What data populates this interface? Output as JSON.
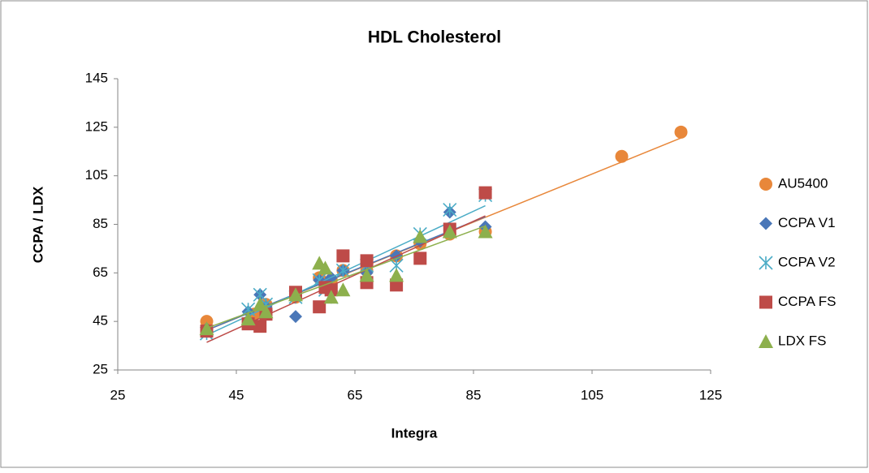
{
  "chart_data": {
    "type": "scatter",
    "title": "HDL Cholesterol",
    "x_label": "Integra",
    "y_label": "CCPA / LDX",
    "xlim": [
      25,
      125
    ],
    "xticks": [
      25,
      45,
      65,
      85,
      105,
      125
    ],
    "ylim": [
      25,
      145
    ],
    "yticks": [
      25,
      45,
      65,
      85,
      105,
      125,
      145
    ],
    "grid": false,
    "trendline": true,
    "legend": "right",
    "series": [
      {
        "name": "AU5400",
        "color": "#e8873a",
        "marker": "circle",
        "x": [
          40,
          48,
          50,
          55,
          59,
          60,
          61,
          63,
          67,
          72,
          76,
          81,
          87,
          110,
          120
        ],
        "values": [
          45,
          48,
          52,
          55,
          63,
          60,
          62,
          66,
          66,
          72,
          77,
          81,
          82,
          113,
          123
        ]
      },
      {
        "name": "CCPA V1",
        "color": "#4a77b8",
        "marker": "diamond",
        "x": [
          40,
          47,
          49,
          50,
          55,
          59,
          60,
          61,
          63,
          67,
          72,
          76,
          81,
          87
        ],
        "values": [
          42,
          49,
          56,
          51,
          47,
          62,
          60,
          63,
          66,
          65,
          72,
          78,
          90,
          84
        ]
      },
      {
        "name": "CCPA V2",
        "color": "#4bacc6",
        "marker": "star",
        "x": [
          40,
          47,
          49,
          50,
          55,
          59,
          60,
          61,
          63,
          67,
          72,
          76,
          81,
          87
        ],
        "values": [
          40,
          50,
          56,
          52,
          55,
          62,
          58,
          55,
          66,
          68,
          68,
          81,
          91,
          97
        ]
      },
      {
        "name": "CCPA FS",
        "color": "#be4b48",
        "marker": "square",
        "x": [
          40,
          47,
          49,
          50,
          55,
          59,
          60,
          61,
          63,
          67,
          67,
          72,
          76,
          81,
          87
        ],
        "values": [
          41,
          44,
          43,
          48,
          57,
          51,
          59,
          58,
          72,
          70,
          61,
          60,
          71,
          83,
          98
        ]
      },
      {
        "name": "LDX FS",
        "color": "#8db04d",
        "marker": "triangle",
        "x": [
          40,
          47,
          49,
          50,
          55,
          59,
          60,
          61,
          63,
          67,
          72,
          76,
          81,
          87
        ],
        "values": [
          42,
          46,
          52,
          49,
          56,
          69,
          67,
          55,
          58,
          64,
          64,
          80,
          82,
          82
        ]
      }
    ]
  }
}
